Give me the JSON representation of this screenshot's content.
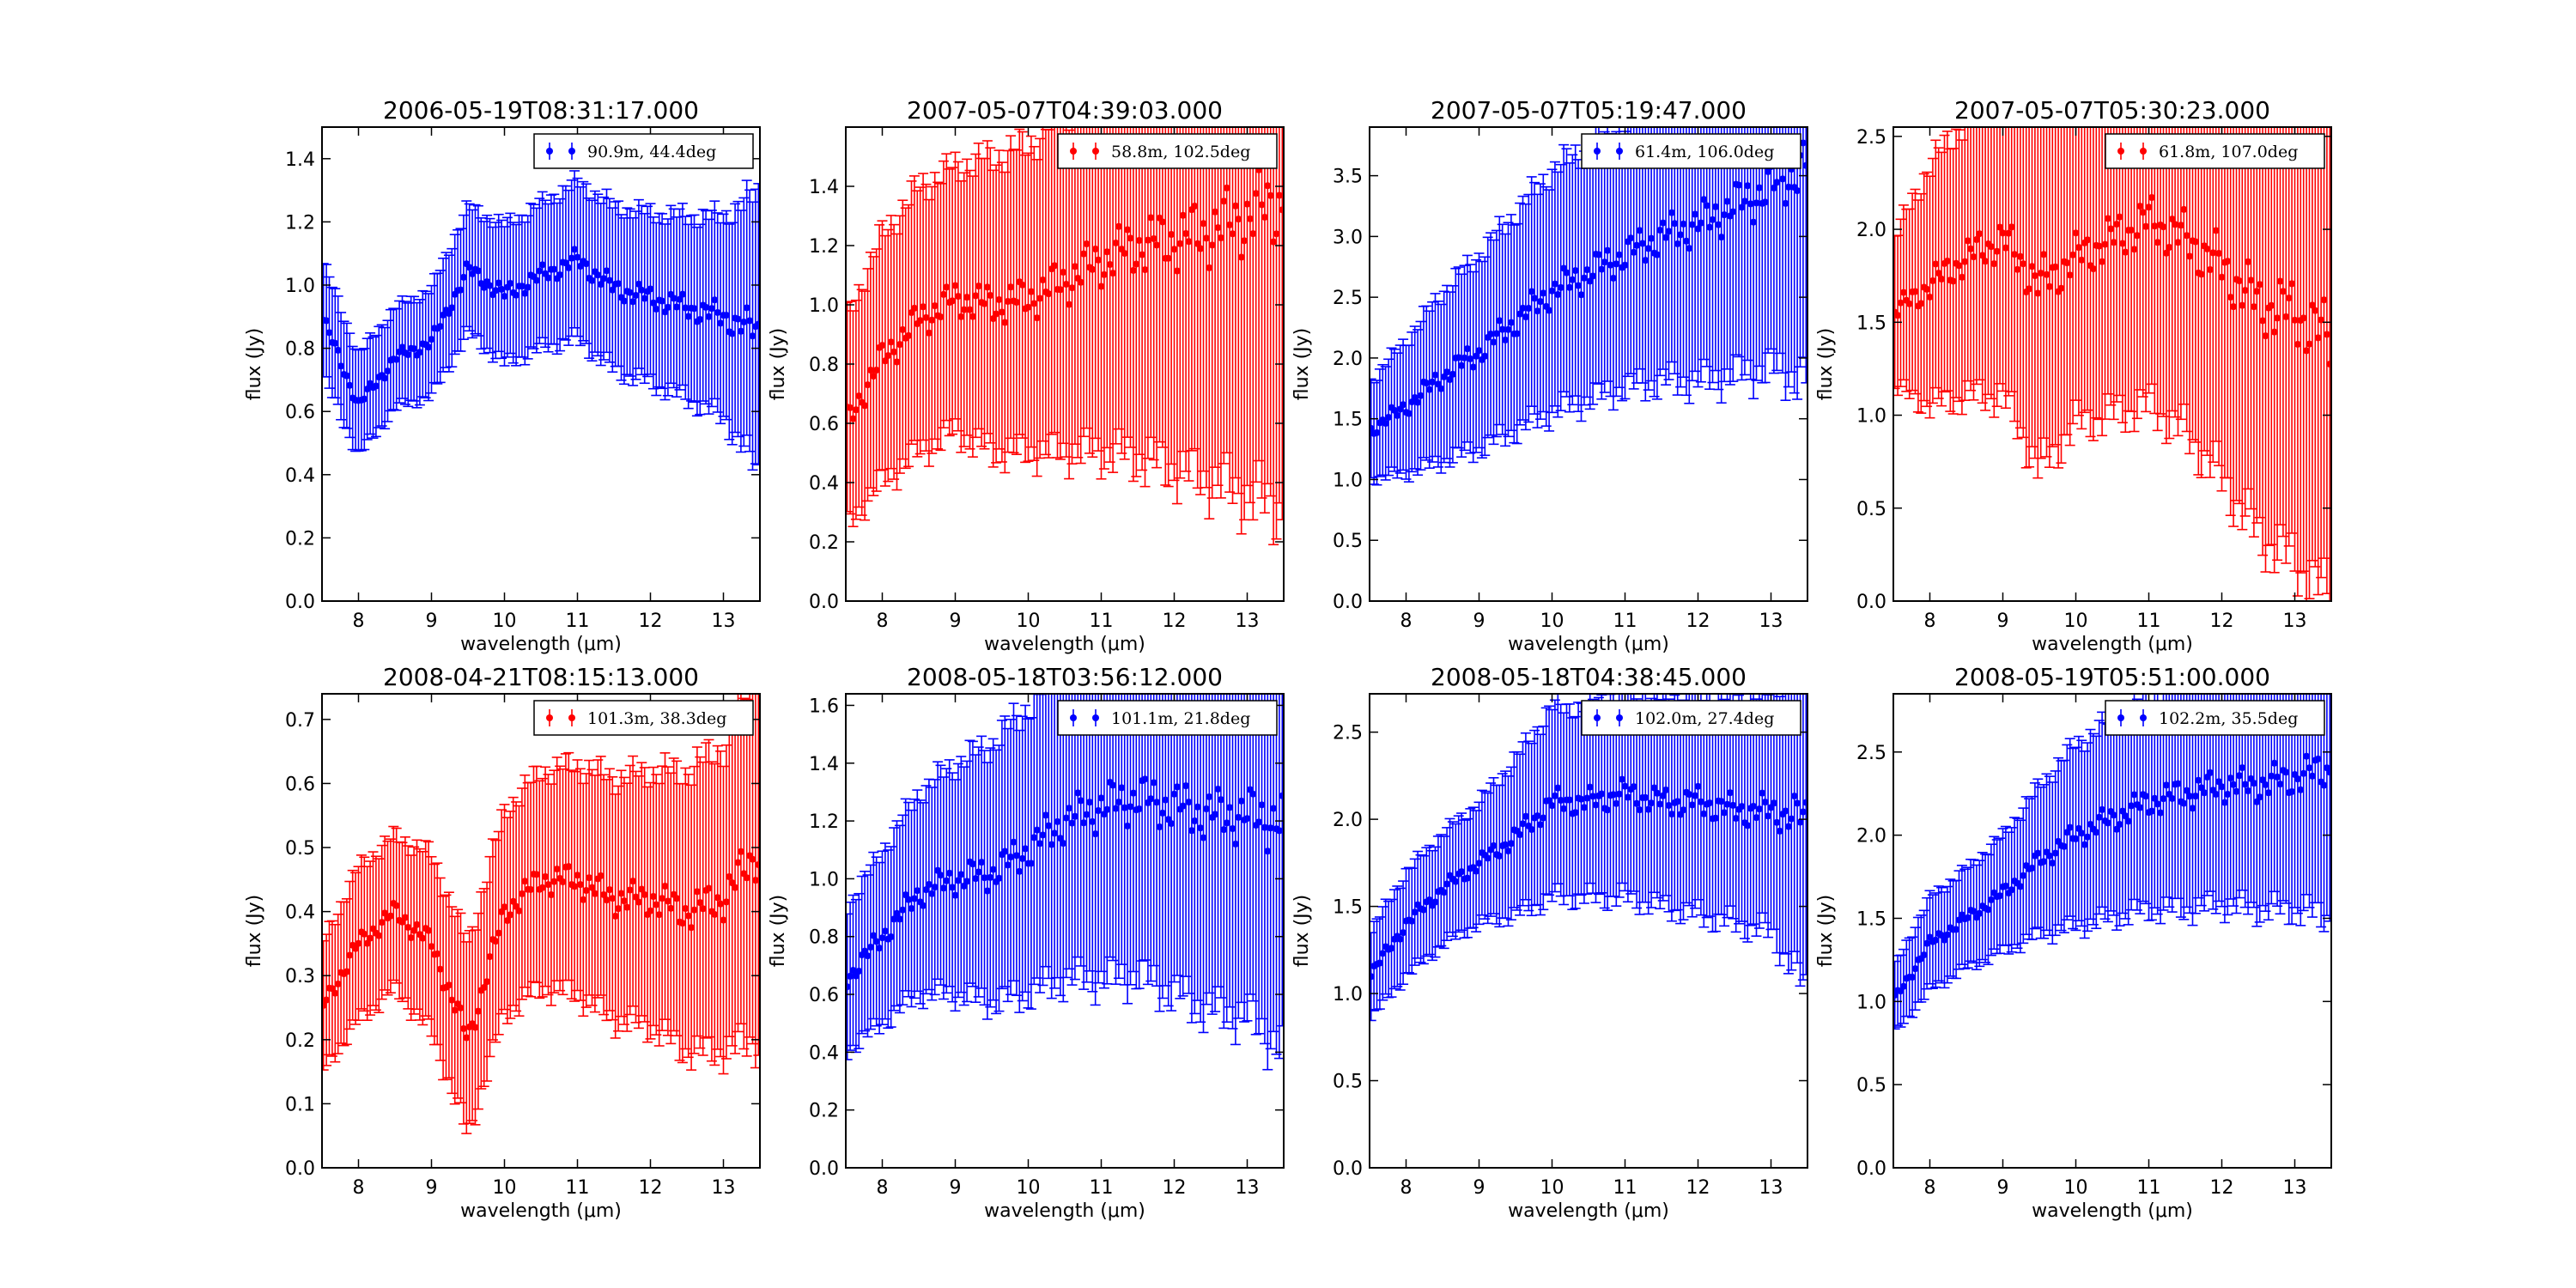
{
  "figure": {
    "xlabel": "wavelength (μm)",
    "ylabel": "flux (Jy)",
    "xlim": [
      7.5,
      13.5
    ],
    "xticks": [
      8,
      9,
      10,
      11,
      12,
      13
    ]
  },
  "chart_data": [
    {
      "type": "scatter",
      "title": "2006-05-19T08:31:17.000",
      "legend": "90.9m, 44.4deg",
      "legend_position": "top-right",
      "color": "#0000ff",
      "ylim": [
        0,
        1.5
      ],
      "yticks": [
        0.0,
        0.2,
        0.4,
        0.6,
        0.8,
        1.0,
        1.2,
        1.4
      ],
      "x": [
        7.5,
        8.0,
        8.5,
        9.0,
        9.5,
        10.0,
        10.5,
        11.0,
        11.5,
        12.0,
        12.5,
        13.0,
        13.5
      ],
      "y": [
        0.9,
        0.62,
        0.77,
        0.82,
        1.05,
        0.97,
        1.03,
        1.08,
        0.99,
        0.96,
        0.93,
        0.9,
        0.85
      ],
      "yerr": [
        0.18,
        0.16,
        0.16,
        0.17,
        0.2,
        0.22,
        0.23,
        0.25,
        0.26,
        0.27,
        0.29,
        0.32,
        0.45
      ]
    },
    {
      "type": "scatter",
      "title": "2007-05-07T04:39:03.000",
      "legend": "58.8m, 102.5deg",
      "legend_position": "top-right",
      "color": "#ff0000",
      "ylim": [
        0,
        1.6
      ],
      "yticks": [
        0.0,
        0.2,
        0.4,
        0.6,
        0.8,
        1.0,
        1.2,
        1.4
      ],
      "x": [
        7.5,
        8.0,
        8.5,
        9.0,
        9.5,
        10.0,
        10.5,
        11.0,
        11.5,
        12.0,
        12.5,
        13.0,
        13.5
      ],
      "y": [
        0.6,
        0.82,
        0.95,
        1.02,
        1.0,
        1.02,
        1.08,
        1.15,
        1.2,
        1.22,
        1.25,
        1.3,
        1.35
      ],
      "yerr": [
        0.35,
        0.42,
        0.45,
        0.45,
        0.5,
        0.52,
        0.58,
        0.65,
        0.72,
        0.78,
        0.85,
        0.95,
        1.05
      ]
    },
    {
      "type": "scatter",
      "title": "2007-05-07T05:19:47.000",
      "legend": "61.4m, 106.0deg",
      "legend_position": "top-right",
      "color": "#0000ff",
      "ylim": [
        0,
        3.9
      ],
      "yticks": [
        0.0,
        0.5,
        1.0,
        1.5,
        2.0,
        2.5,
        3.0,
        3.5
      ],
      "x": [
        7.5,
        8.0,
        8.5,
        9.0,
        9.5,
        10.0,
        10.5,
        11.0,
        11.5,
        12.0,
        12.5,
        13.0,
        13.5
      ],
      "y": [
        1.4,
        1.6,
        1.85,
        2.05,
        2.3,
        2.55,
        2.7,
        2.85,
        3.0,
        3.1,
        3.25,
        3.4,
        3.6
      ],
      "yerr": [
        0.4,
        0.55,
        0.7,
        0.8,
        0.9,
        1.0,
        1.05,
        1.1,
        1.2,
        1.3,
        1.4,
        1.5,
        1.8
      ]
    },
    {
      "type": "scatter",
      "title": "2007-05-07T05:30:23.000",
      "legend": "61.8m, 107.0deg",
      "legend_position": "top-right",
      "color": "#ff0000",
      "ylim": [
        0,
        2.55
      ],
      "yticks": [
        0.0,
        0.5,
        1.0,
        1.5,
        2.0,
        2.5
      ],
      "x": [
        7.5,
        8.0,
        8.5,
        9.0,
        9.5,
        10.0,
        10.5,
        11.0,
        11.5,
        12.0,
        12.5,
        13.0,
        13.5
      ],
      "y": [
        1.55,
        1.7,
        1.85,
        1.95,
        1.7,
        1.85,
        1.95,
        2.05,
        1.95,
        1.8,
        1.6,
        1.55,
        1.4
      ],
      "yerr": [
        0.4,
        0.65,
        0.75,
        0.85,
        1.0,
        0.9,
        0.95,
        1.0,
        1.05,
        1.15,
        1.25,
        1.35,
        1.4
      ]
    },
    {
      "type": "scatter",
      "title": "2008-04-21T08:15:13.000",
      "legend": "101.3m, 38.3deg",
      "legend_position": "top-right",
      "color": "#ff0000",
      "ylim": [
        0,
        0.74
      ],
      "yticks": [
        0.0,
        0.1,
        0.2,
        0.3,
        0.4,
        0.5,
        0.6,
        0.7
      ],
      "x": [
        7.5,
        8.0,
        8.5,
        9.0,
        9.5,
        10.0,
        10.5,
        11.0,
        11.5,
        12.0,
        12.5,
        13.0,
        13.5
      ],
      "y": [
        0.25,
        0.35,
        0.4,
        0.35,
        0.2,
        0.4,
        0.45,
        0.45,
        0.42,
        0.42,
        0.4,
        0.42,
        0.5
      ],
      "yerr": [
        0.1,
        0.12,
        0.12,
        0.14,
        0.15,
        0.16,
        0.17,
        0.18,
        0.19,
        0.2,
        0.22,
        0.24,
        0.3
      ]
    },
    {
      "type": "scatter",
      "title": "2008-05-18T03:56:12.000",
      "legend": "101.1m, 21.8deg",
      "legend_position": "top-right",
      "color": "#0000ff",
      "ylim": [
        0,
        1.64
      ],
      "yticks": [
        0.0,
        0.2,
        0.4,
        0.6,
        0.8,
        1.0,
        1.2,
        1.4,
        1.6
      ],
      "x": [
        7.5,
        8.0,
        8.5,
        9.0,
        9.5,
        10.0,
        10.5,
        11.0,
        11.5,
        12.0,
        12.5,
        13.0,
        13.5
      ],
      "y": [
        0.65,
        0.8,
        0.95,
        1.0,
        1.02,
        1.1,
        1.2,
        1.25,
        1.28,
        1.25,
        1.22,
        1.22,
        1.2
      ],
      "yerr": [
        0.25,
        0.3,
        0.35,
        0.4,
        0.45,
        0.5,
        0.55,
        0.6,
        0.62,
        0.65,
        0.68,
        0.7,
        0.8
      ]
    },
    {
      "type": "scatter",
      "title": "2008-05-18T04:38:45.000",
      "legend": "102.0m, 27.4deg",
      "legend_position": "top-right",
      "color": "#0000ff",
      "ylim": [
        0,
        2.72
      ],
      "yticks": [
        0.0,
        0.5,
        1.0,
        1.5,
        2.0,
        2.5
      ],
      "x": [
        7.5,
        8.0,
        8.5,
        9.0,
        9.5,
        10.0,
        10.5,
        11.0,
        11.5,
        12.0,
        12.5,
        13.0,
        13.5
      ],
      "y": [
        1.1,
        1.4,
        1.6,
        1.75,
        1.9,
        2.1,
        2.1,
        2.15,
        2.1,
        2.1,
        2.05,
        2.05,
        2.0
      ],
      "yerr": [
        0.25,
        0.3,
        0.32,
        0.35,
        0.45,
        0.55,
        0.55,
        0.6,
        0.6,
        0.65,
        0.65,
        0.7,
        1.0
      ]
    },
    {
      "type": "scatter",
      "title": "2008-05-19T05:51:00.000",
      "legend": "102.2m, 35.5deg",
      "legend_position": "top-right",
      "color": "#0000ff",
      "ylim": [
        0,
        2.85
      ],
      "yticks": [
        0.0,
        0.5,
        1.0,
        1.5,
        2.0,
        2.5
      ],
      "x": [
        7.5,
        8.0,
        8.5,
        9.0,
        9.5,
        10.0,
        10.5,
        11.0,
        11.5,
        12.0,
        12.5,
        13.0,
        13.5
      ],
      "y": [
        1.0,
        1.35,
        1.5,
        1.65,
        1.85,
        2.0,
        2.1,
        2.2,
        2.25,
        2.3,
        2.3,
        2.35,
        2.4
      ],
      "yerr": [
        0.2,
        0.28,
        0.3,
        0.35,
        0.45,
        0.55,
        0.6,
        0.65,
        0.7,
        0.72,
        0.75,
        0.8,
        0.9
      ]
    }
  ]
}
